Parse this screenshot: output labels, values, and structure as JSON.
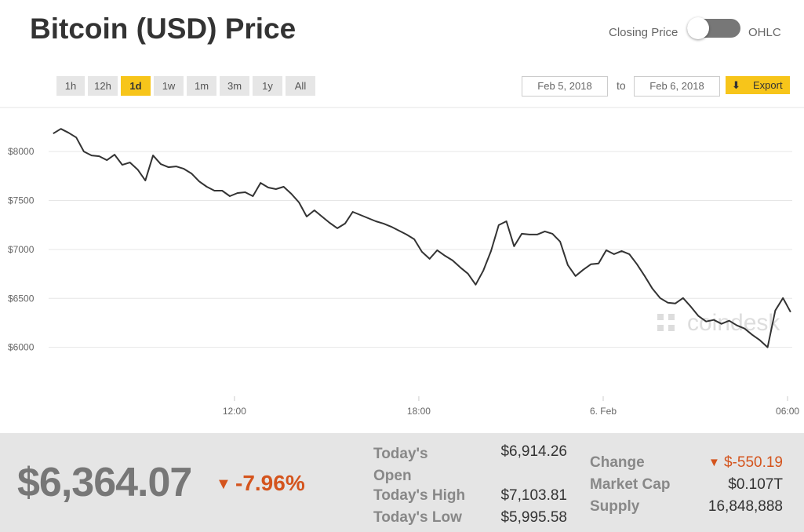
{
  "header": {
    "title": "Bitcoin (USD) Price",
    "toggle_left": "Closing Price",
    "toggle_right": "OHLC"
  },
  "ranges": [
    "1h",
    "12h",
    "1d",
    "1w",
    "1m",
    "3m",
    "1y",
    "All"
  ],
  "active_range": "1d",
  "date_from": "Feb 5, 2018",
  "date_to_label": "to",
  "date_to": "Feb 6, 2018",
  "export": "Export",
  "watermark": "coindesk",
  "chart_data": {
    "type": "line",
    "color": "#333333",
    "xlim": [
      4.37,
      30.28
    ],
    "xticks": [
      {
        "value": 12,
        "label": "12:00"
      },
      {
        "value": 18,
        "label": "18:00"
      },
      {
        "value": 24,
        "label": "6. Feb"
      },
      {
        "value": 30,
        "label": "06:00"
      }
    ],
    "ylim": [
      5500,
      8450
    ],
    "yticks": [
      {
        "value": 6000,
        "label": "$6000"
      },
      {
        "value": 6500,
        "label": "$6500"
      },
      {
        "value": 7000,
        "label": "$7000"
      },
      {
        "value": 7500,
        "label": "$7500"
      },
      {
        "value": 8000,
        "label": "$8000"
      }
    ],
    "grid": true,
    "x": [
      6.1,
      6.35,
      6.6,
      6.85,
      7.1,
      7.35,
      7.6,
      7.85,
      8.1,
      8.35,
      8.6,
      8.85,
      9.1,
      9.35,
      9.6,
      9.85,
      10.1,
      10.35,
      10.6,
      10.85,
      11.1,
      11.35,
      11.6,
      11.85,
      12.1,
      12.35,
      12.6,
      12.85,
      13.1,
      13.35,
      13.6,
      13.85,
      14.1,
      14.35,
      14.6,
      14.85,
      15.1,
      15.35,
      15.6,
      15.85,
      16.1,
      16.35,
      16.6,
      16.85,
      17.1,
      17.35,
      17.6,
      17.85,
      18.1,
      18.35,
      18.6,
      18.85,
      19.1,
      19.35,
      19.6,
      19.85,
      20.1,
      20.35,
      20.6,
      20.85,
      21.1,
      21.35,
      21.6,
      21.85,
      22.1,
      22.35,
      22.6,
      22.85,
      23.1,
      23.35,
      23.6,
      23.85,
      24.1,
      24.35,
      24.6,
      24.85,
      25.1,
      25.35,
      25.6,
      25.85,
      26.1,
      26.35,
      26.6,
      26.85,
      27.1,
      27.35,
      27.6,
      27.85,
      28.1,
      28.35,
      28.6,
      28.85,
      29.1,
      29.35,
      29.6,
      29.85,
      30.1
    ],
    "values": [
      8184,
      8232,
      8192,
      8144,
      8000,
      7960,
      7952,
      7912,
      7968,
      7864,
      7888,
      7816,
      7704,
      7960,
      7872,
      7840,
      7848,
      7824,
      7776,
      7696,
      7640,
      7600,
      7600,
      7544,
      7576,
      7584,
      7544,
      7680,
      7632,
      7616,
      7640,
      7568,
      7480,
      7336,
      7400,
      7336,
      7272,
      7216,
      7264,
      7384,
      7352,
      7320,
      7288,
      7264,
      7232,
      7192,
      7152,
      7104,
      6976,
      6904,
      6992,
      6936,
      6888,
      6816,
      6752,
      6640,
      6784,
      6984,
      7248,
      7288,
      7032,
      7160,
      7152,
      7152,
      7184,
      7160,
      7080,
      6840,
      6728,
      6792,
      6848,
      6856,
      6992,
      6952,
      6984,
      6952,
      6848,
      6728,
      6600,
      6504,
      6456,
      6448,
      6504,
      6416,
      6320,
      6264,
      6280,
      6240,
      6272,
      6224,
      6192,
      6128,
      6072,
      6000,
      6376,
      6504,
      6360
    ]
  },
  "summary": {
    "price": "$6,364.07",
    "change_pct": "-7.96%"
  },
  "stats": {
    "left": [
      {
        "label": "Today's Open",
        "value": "$6,914.26"
      },
      {
        "label": "Today's High",
        "value": "$7,103.81"
      },
      {
        "label": "Today's Low",
        "value": "$5,995.58"
      }
    ],
    "right": [
      {
        "label": "Change",
        "value": "$-550.19"
      },
      {
        "label": "Market Cap",
        "value": "$0.107T"
      },
      {
        "label": "Supply",
        "value": "16,848,888"
      }
    ]
  }
}
